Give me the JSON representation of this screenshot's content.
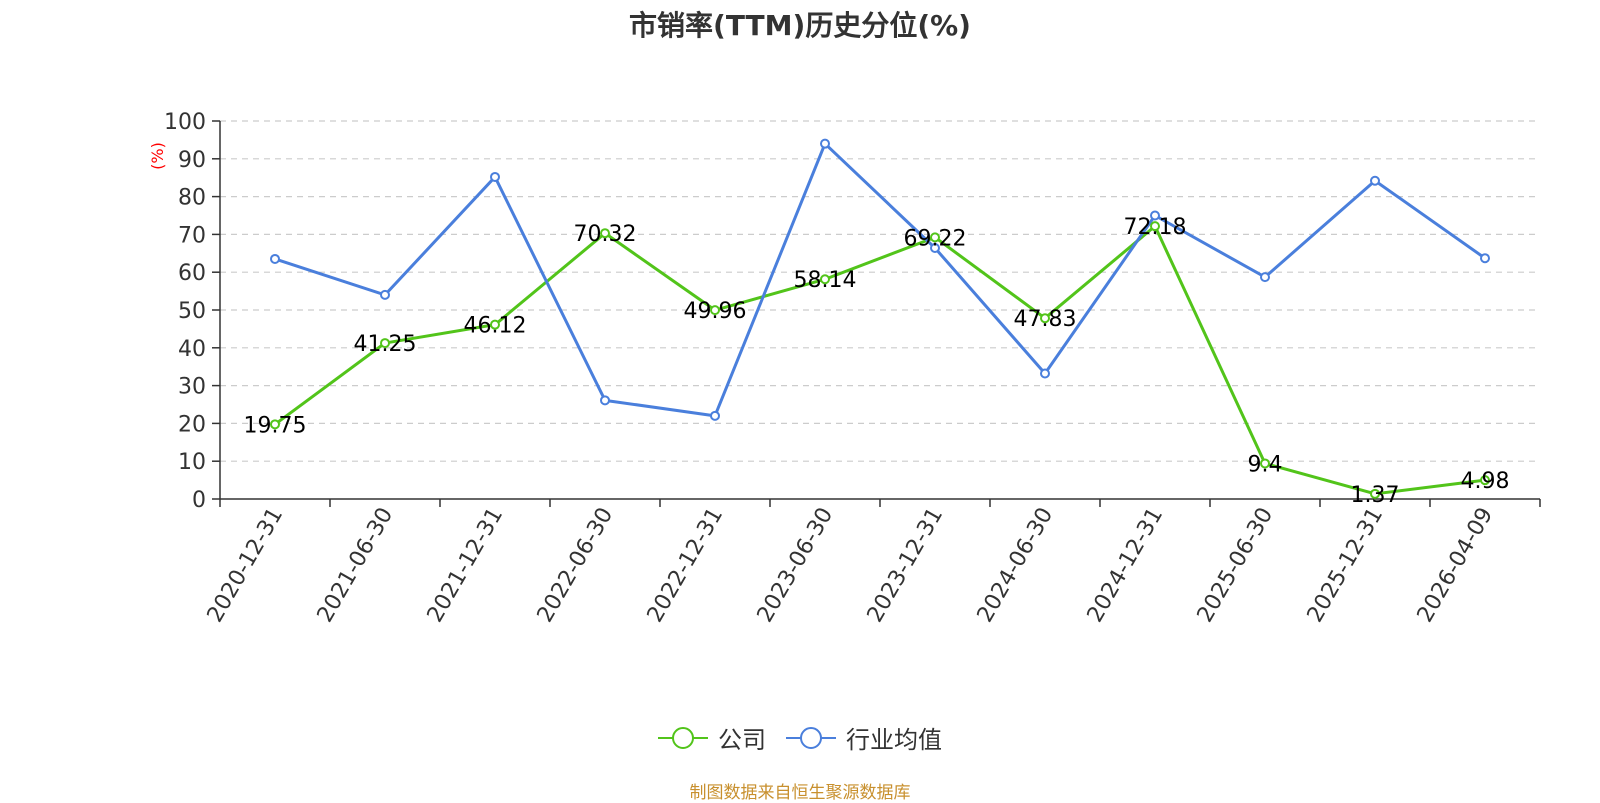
{
  "chart_data": {
    "type": "line",
    "title": "市销率(TTM)历史分位(%)",
    "ylabel": "(%)",
    "xlabel": "",
    "ylim": [
      0,
      100
    ],
    "yticks": [
      0,
      10,
      20,
      30,
      40,
      50,
      60,
      70,
      80,
      90,
      100
    ],
    "grid": true,
    "legend_position": "bottom",
    "categories": [
      "2020-12-31",
      "2021-06-30",
      "2021-12-31",
      "2022-06-30",
      "2022-12-31",
      "2023-06-30",
      "2023-12-31",
      "2024-06-30",
      "2024-12-31",
      "2025-06-30",
      "2025-12-31",
      "2026-04-09"
    ],
    "series": [
      {
        "name": "公司",
        "color": "#52c41a",
        "values": [
          19.75,
          41.25,
          46.12,
          70.32,
          49.96,
          58.14,
          69.22,
          47.83,
          72.18,
          9.4,
          1.37,
          4.98
        ],
        "labels": [
          "19.75",
          "41.25",
          "46.12",
          "70.32",
          "49.96",
          "58.14",
          "69.22",
          "47.83",
          "72.18",
          "9.4",
          "1.37",
          "4.98"
        ]
      },
      {
        "name": "行业均值",
        "color": "#4a7fdc",
        "values": [
          63.5,
          54,
          85.2,
          26.1,
          22,
          94,
          66.4,
          33.2,
          75,
          58.7,
          84.2,
          63.7
        ]
      }
    ]
  },
  "source_note": "制图数据来自恒生聚源数据库",
  "colors": {
    "axis": "#333333",
    "grid": "#cccccc",
    "ylabel": "#ff0000"
  }
}
